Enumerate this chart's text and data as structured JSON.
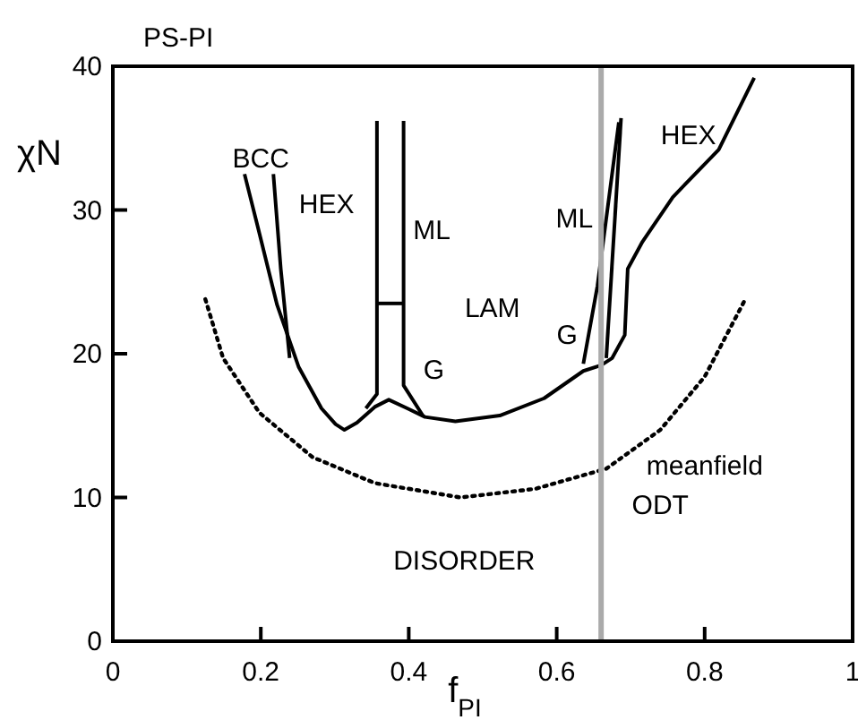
{
  "chart_data": {
    "type": "line",
    "title": "PS-PI",
    "xlabel": "f$_{PI}$",
    "ylabel": "χN",
    "xlim": [
      0,
      1
    ],
    "ylim": [
      0,
      40
    ],
    "xticks": [
      0,
      0.2,
      0.4,
      0.6,
      0.8,
      1
    ],
    "yticks": [
      0,
      10,
      20,
      30,
      40
    ],
    "grid": false,
    "marker": "none",
    "series": [
      {
        "color": "#000000",
        "x": [
          0.178,
          0.198,
          0.222,
          0.251,
          0.282,
          0.301,
          0.313,
          0.33,
          0.354,
          0.373,
          0.398,
          0.422,
          0.463,
          0.523,
          0.583,
          0.636,
          0.66,
          0.675,
          0.692,
          0.696,
          0.716,
          0.757,
          0.819,
          0.867
        ],
        "values": [
          32.5,
          28.4,
          23.4,
          19.1,
          16.2,
          15.1,
          14.7,
          15.2,
          16.3,
          16.8,
          16.2,
          15.6,
          15.3,
          15.7,
          16.9,
          18.8,
          19.2,
          19.7,
          21.3,
          25.9,
          27.8,
          30.9,
          34.2,
          39.2
        ]
      },
      {
        "color": "#000000",
        "x": [
          0.217,
          0.227,
          0.239
        ],
        "values": [
          32.5,
          25.9,
          19.7
        ]
      },
      {
        "color": "#000000",
        "x": [
          0.357,
          0.357,
          0.342
        ],
        "values": [
          36.2,
          17.2,
          16.2
        ]
      },
      {
        "color": "#000000",
        "x": [
          0.393,
          0.393,
          0.419
        ],
        "values": [
          36.2,
          17.8,
          15.7
        ]
      },
      {
        "color": "#000000",
        "x": [
          0.357,
          0.393
        ],
        "values": [
          23.5,
          23.5
        ]
      },
      {
        "color": "#000000",
        "x": [
          0.636,
          0.655,
          0.684
        ],
        "values": [
          19.3,
          24.7,
          36.1
        ]
      },
      {
        "color": "#000000",
        "x": [
          0.667,
          0.687
        ],
        "values": [
          19.7,
          36.4
        ]
      },
      {
        "color": "#000000",
        "line_style": "dotted",
        "x": [
          0.125,
          0.149,
          0.198,
          0.27,
          0.354,
          0.47,
          0.571,
          0.667,
          0.74,
          0.8,
          0.855
        ],
        "values": [
          23.8,
          19.7,
          15.9,
          12.8,
          11,
          10,
          10.6,
          12,
          14.7,
          18.4,
          23.8
        ]
      }
    ],
    "ref_lines": [
      {
        "axis": "x",
        "value": 0.66,
        "color": "#aaaaaa"
      }
    ],
    "annotations": [
      "BCC",
      "HEX",
      "ML",
      "LAM",
      "G",
      "ML",
      "G",
      "HEX",
      "meanfield",
      "ODT",
      "DISORDER"
    ]
  }
}
